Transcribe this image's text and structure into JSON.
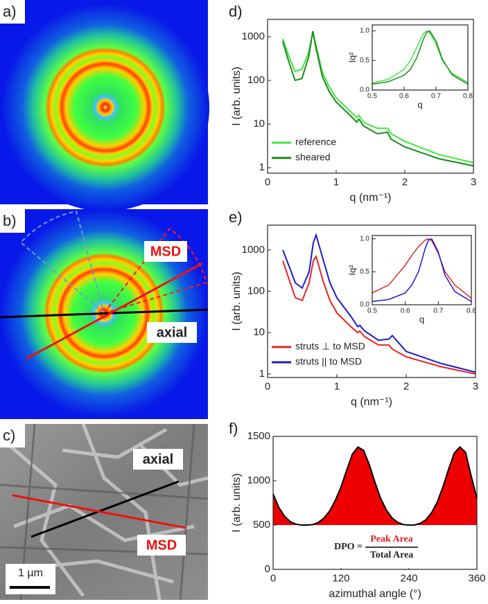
{
  "images": [
    {
      "label": "a)"
    },
    {
      "label": "b)",
      "annotations": [
        "MSD",
        "axial"
      ]
    },
    {
      "label": "c)",
      "annotations": [
        "axial",
        "MSD"
      ],
      "scale_bar": "1 µm"
    }
  ],
  "chart_data": [
    {
      "type": "line",
      "label": "d)",
      "x_label": "q (nm⁻¹)",
      "y_label": "I (arb. units)",
      "log_y": true,
      "xlim": [
        0,
        3
      ],
      "xticks": [
        0,
        1,
        2,
        3
      ],
      "ylim": [
        0.75,
        2500
      ],
      "yticks": [
        1,
        10,
        100,
        1000
      ],
      "legend": "lower left",
      "x": [
        0.22,
        0.3,
        0.4,
        0.5,
        0.6,
        0.66,
        0.7,
        0.8,
        0.9,
        1.0,
        1.2,
        1.3,
        1.33,
        1.4,
        1.6,
        1.75,
        1.8,
        2.0,
        2.5,
        3.0
      ],
      "series": [
        {
          "name": "reference",
          "color": "#3ee83e",
          "values": [
            900,
            400,
            160,
            180,
            450,
            1300,
            700,
            150,
            70,
            40,
            20,
            14,
            16,
            11,
            8,
            8,
            6,
            4,
            2,
            1.3
          ]
        },
        {
          "name": "sheared",
          "color": "#1a8a1a",
          "values": [
            800,
            300,
            100,
            110,
            350,
            1350,
            600,
            120,
            55,
            32,
            16,
            11,
            13,
            9,
            6,
            6.5,
            4.5,
            3,
            1.6,
            1.1
          ]
        }
      ]
    },
    {
      "type": "line",
      "x_label": "q",
      "y_label": "Iq²",
      "xlim": [
        0.5,
        0.8
      ],
      "xticks": [
        0.5,
        0.6,
        0.7,
        0.8
      ],
      "ylim": [
        0,
        1.1
      ],
      "yticks": [
        {
          "value": 0,
          "label": "0.0"
        },
        0.5,
        {
          "value": 1,
          "label": "1.0"
        }
      ],
      "x": [
        0.5,
        0.55,
        0.6,
        0.62,
        0.64,
        0.66,
        0.67,
        0.68,
        0.7,
        0.72,
        0.75,
        0.8
      ],
      "series": [
        {
          "color": "#3ee83e",
          "values": [
            0.12,
            0.18,
            0.35,
            0.5,
            0.72,
            0.95,
            1.0,
            0.97,
            0.78,
            0.5,
            0.28,
            0.13
          ]
        },
        {
          "color": "#1a8a1a",
          "values": [
            0.1,
            0.14,
            0.25,
            0.35,
            0.55,
            0.85,
            0.97,
            1.0,
            0.83,
            0.52,
            0.26,
            0.1
          ]
        }
      ]
    },
    {
      "type": "line",
      "label": "e)",
      "x_label": "q (nm⁻¹)",
      "y_label": "I (arb. units)",
      "log_y": true,
      "xlim": [
        0,
        3
      ],
      "xticks": [
        0,
        1,
        2,
        3
      ],
      "ylim": [
        0.82,
        4000
      ],
      "yticks": [
        1,
        10,
        100,
        1000
      ],
      "legend": "lower left",
      "x": [
        0.22,
        0.3,
        0.4,
        0.5,
        0.6,
        0.66,
        0.7,
        0.8,
        0.9,
        1.0,
        1.2,
        1.3,
        1.33,
        1.4,
        1.6,
        1.75,
        1.8,
        2.0,
        2.5,
        3.0
      ],
      "series": [
        {
          "name": "struts ⊥ to MSD",
          "color": "#e8231e",
          "values": [
            550,
            220,
            70,
            60,
            160,
            550,
            700,
            180,
            60,
            30,
            14,
            10,
            11,
            8,
            5,
            5,
            4,
            2.6,
            1.5,
            1.0
          ]
        },
        {
          "name": "struts || to MSD",
          "color": "#1a1ad0",
          "values": [
            1000,
            450,
            160,
            120,
            300,
            1500,
            2300,
            600,
            160,
            70,
            25,
            14,
            15,
            11,
            6.5,
            7,
            8.5,
            3.5,
            1.8,
            1.1
          ]
        }
      ]
    },
    {
      "type": "line",
      "x_label": "q",
      "y_label": "Iq²",
      "xlim": [
        0.5,
        0.8
      ],
      "xticks": [
        0.5,
        0.6,
        0.7,
        0.8
      ],
      "ylim": [
        0,
        1.05
      ],
      "yticks": [
        {
          "value": 0,
          "label": "0.0"
        },
        0.5,
        {
          "value": 1,
          "label": "1.0"
        }
      ],
      "x": [
        0.5,
        0.55,
        0.6,
        0.62,
        0.64,
        0.66,
        0.67,
        0.68,
        0.7,
        0.72,
        0.75,
        0.8
      ],
      "series": [
        {
          "color": "#e8231e",
          "values": [
            0.18,
            0.3,
            0.6,
            0.75,
            0.88,
            0.98,
            1.0,
            0.97,
            0.78,
            0.5,
            0.3,
            0.1
          ]
        },
        {
          "color": "#1a1ad0",
          "values": [
            0.05,
            0.08,
            0.18,
            0.3,
            0.5,
            0.85,
            0.98,
            1.0,
            0.8,
            0.45,
            0.2,
            0.05
          ]
        }
      ]
    },
    {
      "type": "area",
      "label": "f)",
      "x_label": "azimuthal angle (°)",
      "y_label": "I (arb. units)",
      "color": "#ee0000",
      "line_color": "#000000",
      "xlim": [
        0,
        360
      ],
      "xticks": [
        0,
        120,
        240,
        360
      ],
      "ylim": [
        0,
        1500
      ],
      "yticks": [
        0,
        500,
        1000,
        1500
      ],
      "x": [
        0,
        10,
        20,
        30,
        40,
        50,
        60,
        70,
        80,
        90,
        100,
        110,
        120,
        130,
        140,
        150,
        160,
        170,
        180,
        190,
        200,
        210,
        220,
        230,
        240,
        250,
        260,
        270,
        280,
        290,
        300,
        310,
        320,
        330,
        340,
        350,
        360
      ],
      "values": [
        850,
        700,
        600,
        540,
        510,
        500,
        500,
        505,
        530,
        580,
        660,
        780,
        930,
        1120,
        1300,
        1380,
        1340,
        1180,
        980,
        800,
        670,
        580,
        530,
        505,
        500,
        500,
        520,
        560,
        640,
        760,
        930,
        1130,
        1310,
        1380,
        1320,
        1050,
        800
      ],
      "annotation": {
        "lhs": "DPO =",
        "numerator": "Peak Area",
        "denominator": "Total Area"
      }
    }
  ]
}
